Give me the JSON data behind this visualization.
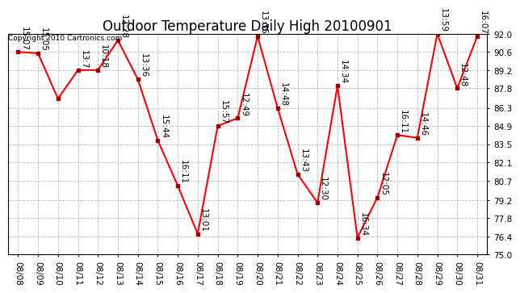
{
  "title": "Outdoor Temperature Daily High 20100901",
  "copyright": "Copyright 2010 Cartronics.com",
  "x_labels": [
    "08/08",
    "08/09",
    "08/10",
    "08/11",
    "08/12",
    "08/13",
    "08/14",
    "08/15",
    "08/16",
    "08/17",
    "08/18",
    "08/19",
    "08/20",
    "08/21",
    "08/22",
    "08/23",
    "08/24",
    "08/25",
    "08/26",
    "08/27",
    "08/28",
    "08/29",
    "08/30",
    "08/31"
  ],
  "y_values": [
    90.6,
    90.5,
    87.0,
    89.2,
    89.2,
    91.5,
    88.5,
    83.8,
    80.3,
    76.6,
    84.9,
    85.5,
    91.8,
    86.3,
    81.2,
    79.0,
    88.0,
    76.3,
    79.4,
    84.2,
    84.0,
    92.0,
    87.8,
    91.8
  ],
  "time_labels": [
    "15:07",
    "15:05",
    "",
    "13:7",
    "10:18",
    "12:28",
    "13:36",
    "15:44",
    "16:11",
    "13:01",
    "15:57",
    "12:49",
    "13:35",
    "14:48",
    "13:43",
    "12:30",
    "14:34",
    "16:34",
    "12:05",
    "16:11",
    "14:46",
    "13:59",
    "12:48",
    "16:07"
  ],
  "y_min": 75.0,
  "y_max": 92.0,
  "y_ticks": [
    75.0,
    76.4,
    77.8,
    79.2,
    80.7,
    82.1,
    83.5,
    84.9,
    86.3,
    87.8,
    89.2,
    90.6,
    92.0
  ],
  "line_color": "red",
  "marker_color": "#990000",
  "bg_color": "white",
  "grid_color": "#bbbbbb",
  "title_fontsize": 12,
  "label_fontsize": 7.5,
  "tick_fontsize": 7.5,
  "copyright_fontsize": 6.5
}
